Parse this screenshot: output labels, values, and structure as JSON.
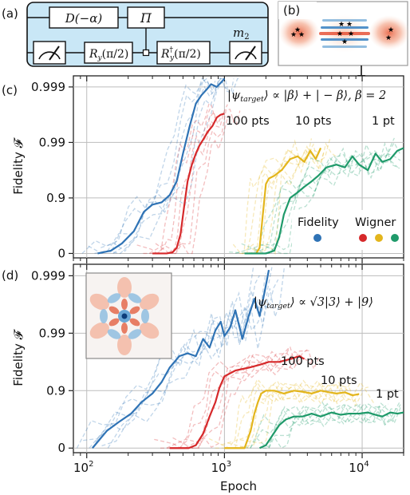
{
  "panels": {
    "a": "(a)",
    "b": "(b)",
    "c": "(c)",
    "d": "(d)"
  },
  "circuit": {
    "displacement": "D(−α)",
    "parity": "Π",
    "ry": "R",
    "ry_sub": "y",
    "ry_arg": "(π/2)",
    "ry_dag": "R",
    "ry_dag_sup": "†",
    "ry_dag_sub": "y",
    "ry_dag_arg": "(π/2)",
    "m2": "m",
    "m2_sub": "2",
    "box_color": "#c9e7f6"
  },
  "colors": {
    "fidelity": "#2f73b5",
    "wigner_100": "#d6282a",
    "wigner_10": "#e3b51c",
    "wigner_1": "#1f9a6a"
  },
  "legend": {
    "fidelity": "Fidelity",
    "wigner": "Wigner"
  },
  "axis": {
    "ylabel": "Fidelity 𝓕",
    "xlabel": "Epoch",
    "yticks": [
      "0",
      "0.9",
      "0.99",
      "0.999"
    ],
    "xticks": [
      "10",
      "10",
      "10"
    ],
    "xtick_exp": [
      "2",
      "3",
      "4"
    ]
  },
  "chart_data": [
    {
      "type": "line",
      "panel": "c",
      "title": "|ψtarget⟩ ∝ |β⟩ + |−β⟩, β = 2",
      "title_parts": {
        "pre": "|ψ",
        "sub": "target",
        "post": "⟩ ∝ |β⟩ + | − β⟩,  β = 2"
      },
      "xscale": "log",
      "xlim": [
        80,
        20000
      ],
      "ylabel": "Fidelity 𝓕",
      "yscale": "-log10(1-F)",
      "ylim_nines": [
        -0.08,
        3.2
      ],
      "annotations": [
        "100 pts",
        "10 pts",
        "1 pt"
      ],
      "series": [
        {
          "name": "Fidelity",
          "color": "#2f73b5",
          "x": [
            120,
            150,
            180,
            220,
            260,
            300,
            350,
            400,
            450,
            500,
            560,
            620,
            680,
            740,
            800,
            880,
            960,
            1000
          ],
          "y": [
            0.0,
            0.05,
            0.18,
            0.4,
            0.75,
            0.88,
            0.92,
            1.05,
            1.3,
            1.8,
            2.3,
            2.7,
            2.85,
            2.95,
            3.05,
            3.0,
            3.1,
            3.15
          ]
        },
        {
          "name": "100 pts",
          "color": "#d6282a",
          "x": [
            300,
            380,
            420,
            450,
            480,
            510,
            540,
            580,
            620,
            660,
            700,
            760,
            820,
            880,
            940,
            1000
          ],
          "y": [
            0.0,
            0.0,
            0.02,
            0.1,
            0.35,
            0.85,
            1.3,
            1.6,
            1.8,
            1.95,
            2.05,
            2.2,
            2.3,
            2.45,
            2.5,
            2.52
          ]
        },
        {
          "name": "10 pts",
          "color": "#e3b51c",
          "x": [
            1500,
            1700,
            1800,
            1900,
            2000,
            2100,
            2300,
            2600,
            3000,
            3400,
            3800,
            4200,
            4600,
            5000
          ],
          "y": [
            0.0,
            0.0,
            0.1,
            0.7,
            1.25,
            1.35,
            1.4,
            1.5,
            1.7,
            1.75,
            1.65,
            1.85,
            1.7,
            1.9
          ]
        },
        {
          "name": "1 pt",
          "color": "#1f9a6a",
          "x": [
            1400,
            2000,
            2300,
            2500,
            2700,
            3000,
            3400,
            3800,
            4300,
            4800,
            5500,
            6500,
            7500,
            8500,
            9500,
            11000,
            12500,
            14000,
            16000,
            18000,
            20000
          ],
          "y": [
            0.0,
            0.0,
            0.05,
            0.3,
            0.7,
            1.0,
            1.1,
            1.2,
            1.3,
            1.4,
            1.55,
            1.6,
            1.55,
            1.75,
            1.6,
            1.5,
            1.8,
            1.65,
            1.7,
            1.85,
            1.9
          ]
        }
      ]
    },
    {
      "type": "line",
      "panel": "d",
      "title": "|ψtarget⟩ ∝ √3|3⟩ + |9⟩",
      "title_parts": {
        "pre": "|ψ",
        "sub": "target",
        "post": "⟩ ∝ √3|3⟩ + |9⟩"
      },
      "xscale": "log",
      "xlim": [
        80,
        20000
      ],
      "ylabel": "Fidelity 𝓕",
      "yscale": "-log10(1-F)",
      "ylim_nines": [
        -0.08,
        3.2
      ],
      "annotations": [
        "100 pts",
        "10 pts",
        "1 pt"
      ],
      "series": [
        {
          "name": "Fidelity",
          "color": "#2f73b5",
          "x": [
            110,
            140,
            170,
            210,
            250,
            300,
            350,
            400,
            470,
            540,
            620,
            700,
            780,
            860,
            940,
            1000,
            1100,
            1200,
            1350,
            1500,
            1650,
            1800,
            1950,
            2100
          ],
          "y": [
            0.0,
            0.3,
            0.45,
            0.6,
            0.8,
            0.95,
            1.15,
            1.4,
            1.6,
            1.65,
            1.6,
            1.9,
            1.75,
            2.05,
            2.2,
            1.95,
            2.1,
            2.4,
            1.9,
            2.3,
            2.6,
            2.3,
            2.7,
            3.1
          ]
        },
        {
          "name": "100 pts",
          "color": "#d6282a",
          "x": [
            400,
            550,
            620,
            700,
            780,
            860,
            920,
            1000,
            1200,
            1500,
            1800,
            2100,
            2500,
            3000,
            3500,
            3800
          ],
          "y": [
            0.0,
            0.0,
            0.05,
            0.25,
            0.55,
            0.8,
            1.05,
            1.25,
            1.35,
            1.4,
            1.45,
            1.5,
            1.5,
            1.55,
            1.6,
            1.55
          ]
        },
        {
          "name": "10 pts",
          "color": "#e3b51c",
          "x": [
            1000,
            1400,
            1550,
            1650,
            1750,
            1850,
            2000,
            2300,
            2700,
            3200,
            3700,
            4300,
            5000,
            5800,
            6500,
            7500,
            8500,
            9500
          ],
          "y": [
            0.0,
            0.0,
            0.3,
            0.6,
            0.8,
            0.95,
            1.0,
            1.0,
            0.95,
            1.0,
            0.98,
            0.95,
            1.0,
            0.97,
            0.95,
            0.97,
            0.92,
            0.94
          ]
        },
        {
          "name": "1 pt",
          "color": "#1f9a6a",
          "x": [
            1800,
            2000,
            2200,
            2500,
            2800,
            3200,
            3700,
            4300,
            5000,
            6000,
            7000,
            8000,
            9500,
            11000,
            12500,
            14000,
            16000,
            18000,
            20000
          ],
          "y": [
            0.0,
            0.05,
            0.2,
            0.4,
            0.5,
            0.55,
            0.55,
            0.6,
            0.55,
            0.62,
            0.58,
            0.6,
            0.6,
            0.62,
            0.58,
            0.55,
            0.62,
            0.6,
            0.62
          ]
        }
      ]
    }
  ]
}
